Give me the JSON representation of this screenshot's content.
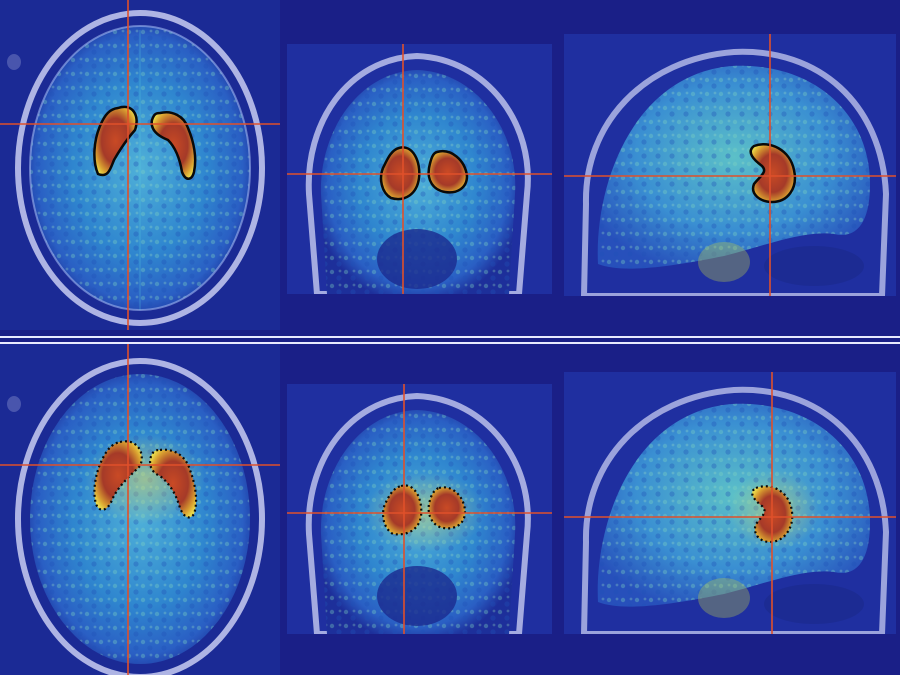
{
  "figure": {
    "rows": [
      {
        "id": "top",
        "contour_style": "solid",
        "views": [
          "axial",
          "coronal",
          "sagittal"
        ]
      },
      {
        "id": "bottom",
        "contour_style": "dotted",
        "views": [
          "axial",
          "coronal",
          "sagittal"
        ]
      }
    ],
    "colors": {
      "background": "#1a1f87",
      "crosshair": "#e0502a",
      "contour": "#0a0a0a",
      "hotspot": "#b0442c",
      "brain_fill": "#2e8fd0"
    }
  }
}
